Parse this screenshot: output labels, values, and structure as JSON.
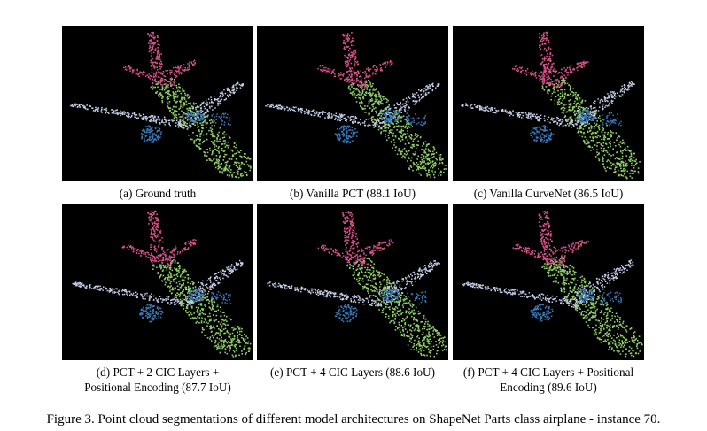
{
  "figure": {
    "caption": "Figure 3. Point cloud segmentations of different model architectures on ShapeNet Parts class airplane - instance 70."
  },
  "panels": [
    {
      "caption_lines": [
        "(a) Ground truth"
      ]
    },
    {
      "caption_lines": [
        "(b) Vanilla PCT (88.1 IoU)"
      ]
    },
    {
      "caption_lines": [
        "(c) Vanilla CurveNet (86.5 IoU)"
      ]
    },
    {
      "caption_lines": [
        "(d) PCT + 2 CIC Layers +",
        "Positional Encoding (87.7 IoU)"
      ]
    },
    {
      "caption_lines": [
        "(e) PCT + 4 CIC Layers (88.6 IoU)"
      ]
    },
    {
      "caption_lines": [
        "(f) PCT + 4 CIC Layers + Positional",
        "Encoding (89.6 IoU)"
      ]
    }
  ],
  "colors": {
    "background": "#000000",
    "fuselage": "#8fcf6a",
    "wings": "#c3cde8",
    "engines": "#3a78b8",
    "tail": "#d9538a"
  }
}
